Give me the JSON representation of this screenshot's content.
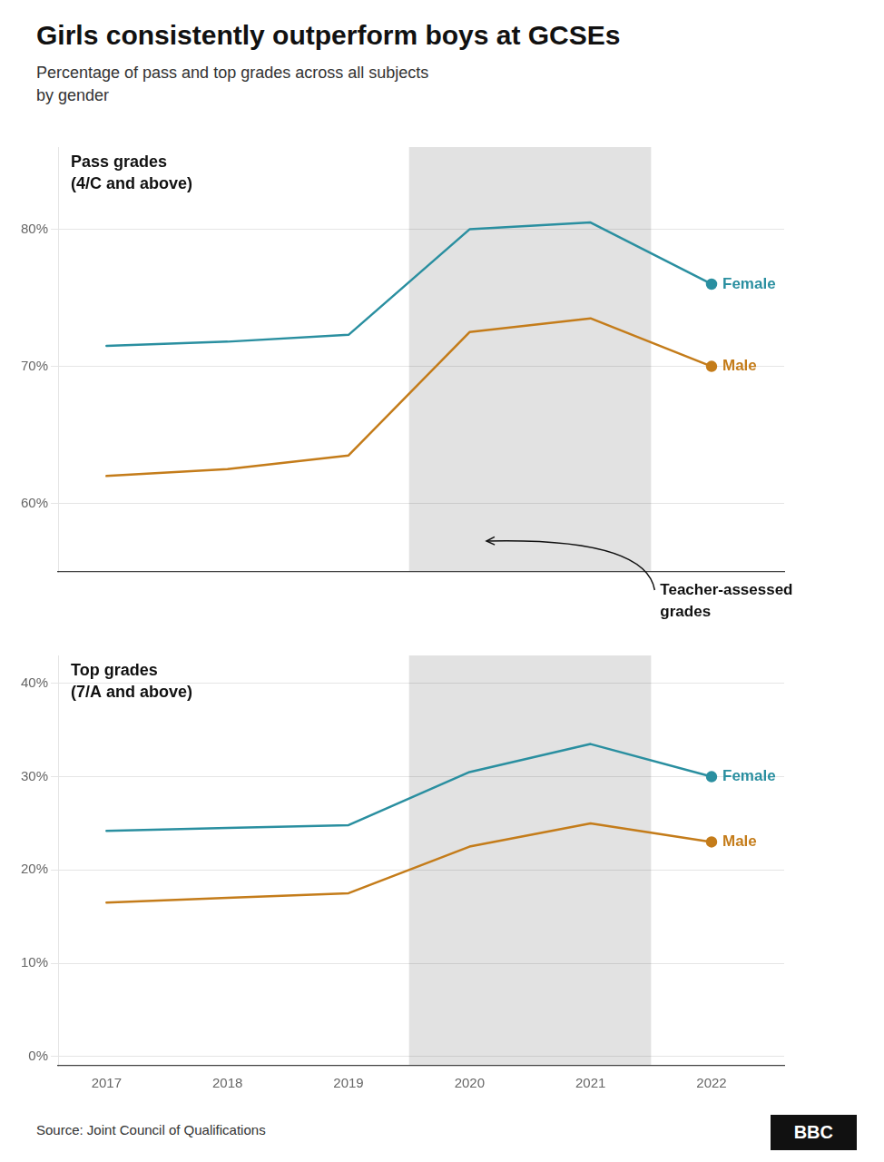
{
  "chart_data": [
    {
      "type": "line",
      "title": "Girls consistently outperform boys at GCSEs",
      "subtitle": "Percentage of pass and top grades across all subjects\nby gender",
      "annotations": [
        "Pass grades",
        "(4/C and above)",
        "Teacher-assessed\ngrades"
      ],
      "x": [
        2017,
        2018,
        2019,
        2020,
        2021,
        2022
      ],
      "series": [
        {
          "name": "Female",
          "color": "#2a8fa0",
          "values": [
            71.5,
            71.8,
            72.3,
            80.0,
            80.5,
            76.0
          ]
        },
        {
          "name": "Male",
          "color": "#c47c1a",
          "values": [
            62.0,
            62.5,
            63.5,
            72.5,
            73.5,
            70.0
          ]
        }
      ],
      "shaded": {
        "x": [
          2019.5,
          2021.5
        ],
        "color": "#e2e2e2"
      },
      "xlim": [
        2016.6,
        2022.6
      ],
      "xticks": [
        2017,
        2018,
        2019,
        2020,
        2021,
        2022
      ],
      "ylim": [
        55.0,
        86.0
      ],
      "yticks": [
        {
          "value": 60,
          "label": "60%"
        },
        {
          "value": 70,
          "label": "70%"
        },
        {
          "value": 80,
          "label": "80%"
        }
      ],
      "grid": true,
      "tick_labels": "y"
    },
    {
      "type": "line",
      "annotations": [
        "Top grades",
        "(7/A and above)",
        "Source: Joint Council of Qualifications",
        "BBC"
      ],
      "x": [
        2017,
        2018,
        2019,
        2020,
        2021,
        2022
      ],
      "series": [
        {
          "name": "Female",
          "color": "#2a8fa0",
          "values": [
            24.2,
            24.5,
            24.8,
            30.5,
            33.5,
            30.0
          ]
        },
        {
          "name": "Male",
          "color": "#c47c1a",
          "values": [
            16.5,
            17.0,
            17.5,
            22.5,
            25.0,
            23.0
          ]
        }
      ],
      "shaded": {
        "x": [
          2019.5,
          2021.5
        ],
        "color": "#e2e2e2"
      },
      "xlim": [
        2016.6,
        2022.6
      ],
      "xticks": [
        2017,
        2018,
        2019,
        2020,
        2021,
        2022
      ],
      "ylim": [
        -1.0,
        43.0
      ],
      "yticks": [
        {
          "value": 0,
          "label": "0%"
        },
        {
          "value": 10,
          "label": "10%"
        },
        {
          "value": 20,
          "label": "20%"
        },
        {
          "value": 30,
          "label": "30%"
        },
        {
          "value": 40,
          "label": "40%"
        }
      ],
      "grid": true
    }
  ]
}
